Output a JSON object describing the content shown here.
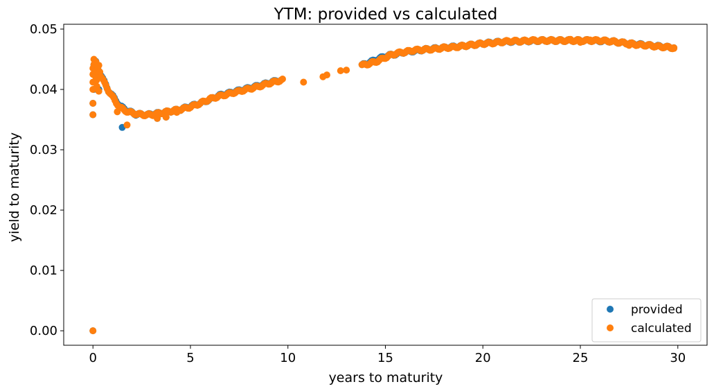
{
  "chart_data": {
    "type": "scatter",
    "title": "YTM: provided vs calculated",
    "xlabel": "years to maturity",
    "ylabel": "yield to maturity",
    "xlim": [
      -1.5,
      31.5
    ],
    "ylim": [
      -0.0024,
      0.0508
    ],
    "xticks": [
      0,
      5,
      10,
      15,
      20,
      25,
      30
    ],
    "yticks": [
      0.0,
      0.01,
      0.02,
      0.03,
      0.04,
      0.05
    ],
    "ytick_labels": [
      "0.00",
      "0.01",
      "0.02",
      "0.03",
      "0.04",
      "0.05"
    ],
    "legend_position": "lower-right",
    "series": [
      {
        "name": "provided",
        "color": "#1f77b4",
        "points": [
          [
            0.0,
            0.0
          ],
          [
            0.0,
            0.0358
          ],
          [
            0.0,
            0.0377
          ],
          [
            0.05,
            0.04
          ],
          [
            0.3,
            0.04
          ],
          [
            1.5,
            0.0337
          ],
          [
            3.75,
            0.0354
          ],
          [
            3.3,
            0.0352
          ],
          [
            24.0,
            0.0482
          ],
          [
            26.3,
            0.0481
          ],
          [
            27.5,
            0.0474
          ]
        ],
        "curve": [
          [
            0.05,
            0.044
          ],
          [
            0.15,
            0.0445
          ],
          [
            0.3,
            0.0432
          ],
          [
            0.5,
            0.0418
          ],
          [
            0.8,
            0.0398
          ],
          [
            1.1,
            0.0385
          ],
          [
            1.4,
            0.0372
          ],
          [
            1.8,
            0.0364
          ],
          [
            2.2,
            0.0359
          ],
          [
            2.8,
            0.0358
          ],
          [
            3.5,
            0.0361
          ],
          [
            4.5,
            0.0367
          ],
          [
            5.5,
            0.0377
          ],
          [
            6.5,
            0.039
          ],
          [
            7.5,
            0.0398
          ],
          [
            8.5,
            0.0406
          ],
          [
            9.5,
            0.0415
          ],
          [
            13.8,
            0.044
          ],
          [
            15.0,
            0.0455
          ],
          [
            16.0,
            0.0462
          ],
          [
            17.0,
            0.0466
          ],
          [
            18.0,
            0.0469
          ],
          [
            19.0,
            0.0472
          ],
          [
            20.0,
            0.0476
          ],
          [
            21.0,
            0.0479
          ],
          [
            22.0,
            0.048
          ],
          [
            23.0,
            0.0481
          ],
          [
            24.5,
            0.0481
          ],
          [
            25.5,
            0.0481
          ],
          [
            26.5,
            0.048
          ],
          [
            27.5,
            0.0476
          ],
          [
            28.5,
            0.0473
          ],
          [
            29.8,
            0.0469
          ]
        ]
      },
      {
        "name": "calculated",
        "color": "#ff7f0e",
        "points": [
          [
            0.0,
            0.0
          ],
          [
            0.0,
            0.0358
          ],
          [
            0.0,
            0.0377
          ],
          [
            0.0,
            0.04
          ],
          [
            0.0,
            0.0412
          ],
          [
            0.0,
            0.0425
          ],
          [
            0.0,
            0.0435
          ],
          [
            0.05,
            0.045
          ],
          [
            0.08,
            0.0442
          ],
          [
            0.1,
            0.043
          ],
          [
            0.12,
            0.0422
          ],
          [
            0.15,
            0.0446
          ],
          [
            0.18,
            0.0415
          ],
          [
            0.2,
            0.0405
          ],
          [
            0.25,
            0.0437
          ],
          [
            0.28,
            0.0425
          ],
          [
            0.3,
            0.044
          ],
          [
            0.35,
            0.0429
          ],
          [
            0.4,
            0.042
          ],
          [
            0.3,
            0.0397
          ],
          [
            1.25,
            0.0363
          ],
          [
            1.75,
            0.0341
          ],
          [
            3.3,
            0.0352
          ],
          [
            3.75,
            0.0354
          ],
          [
            4.3,
            0.0362
          ],
          [
            10.8,
            0.0412
          ],
          [
            11.8,
            0.0421
          ],
          [
            12.0,
            0.0424
          ],
          [
            12.7,
            0.0431
          ],
          [
            13.0,
            0.0432
          ],
          [
            24.5,
            0.0483
          ],
          [
            25.0,
            0.0478
          ],
          [
            25.5,
            0.0482
          ],
          [
            27.5,
            0.0473
          ],
          [
            29.8,
            0.0468
          ]
        ],
        "curve": [
          [
            0.05,
            0.044
          ],
          [
            0.2,
            0.0437
          ],
          [
            0.4,
            0.0423
          ],
          [
            0.6,
            0.041
          ],
          [
            0.8,
            0.0398
          ],
          [
            1.0,
            0.0388
          ],
          [
            1.2,
            0.0378
          ],
          [
            1.4,
            0.037
          ],
          [
            1.6,
            0.0366
          ],
          [
            1.8,
            0.0363
          ],
          [
            2.0,
            0.0361
          ],
          [
            2.3,
            0.0359
          ],
          [
            2.6,
            0.0358
          ],
          [
            3.0,
            0.0358
          ],
          [
            3.5,
            0.0361
          ],
          [
            4.0,
            0.0364
          ],
          [
            4.5,
            0.0367
          ],
          [
            5.0,
            0.0371
          ],
          [
            5.5,
            0.0377
          ],
          [
            6.0,
            0.0384
          ],
          [
            6.5,
            0.0389
          ],
          [
            7.0,
            0.0393
          ],
          [
            7.5,
            0.0397
          ],
          [
            8.0,
            0.0401
          ],
          [
            8.5,
            0.0405
          ],
          [
            9.0,
            0.041
          ],
          [
            9.5,
            0.0414
          ],
          [
            9.8,
            0.0416
          ],
          [
            13.8,
            0.044
          ],
          [
            14.2,
            0.0443
          ],
          [
            14.6,
            0.0447
          ],
          [
            15.0,
            0.0453
          ],
          [
            15.2,
            0.0456
          ],
          [
            15.6,
            0.046
          ],
          [
            16.0,
            0.0462
          ],
          [
            16.5,
            0.0465
          ],
          [
            17.0,
            0.0466
          ],
          [
            17.5,
            0.0467
          ],
          [
            18.0,
            0.0469
          ],
          [
            18.5,
            0.047
          ],
          [
            19.0,
            0.0472
          ],
          [
            19.5,
            0.0474
          ],
          [
            20.0,
            0.0476
          ],
          [
            20.5,
            0.0477
          ],
          [
            21.0,
            0.0479
          ],
          [
            21.5,
            0.048
          ],
          [
            22.0,
            0.048
          ],
          [
            22.5,
            0.0481
          ],
          [
            23.0,
            0.0481
          ],
          [
            23.5,
            0.0481
          ],
          [
            24.0,
            0.0481
          ],
          [
            24.5,
            0.0481
          ],
          [
            25.0,
            0.0481
          ],
          [
            25.5,
            0.0481
          ],
          [
            26.0,
            0.0481
          ],
          [
            26.5,
            0.048
          ],
          [
            27.0,
            0.0478
          ],
          [
            27.5,
            0.0476
          ],
          [
            28.0,
            0.0474
          ],
          [
            28.5,
            0.0473
          ],
          [
            29.0,
            0.0471
          ],
          [
            29.5,
            0.047
          ],
          [
            29.8,
            0.0469
          ]
        ]
      }
    ]
  }
}
